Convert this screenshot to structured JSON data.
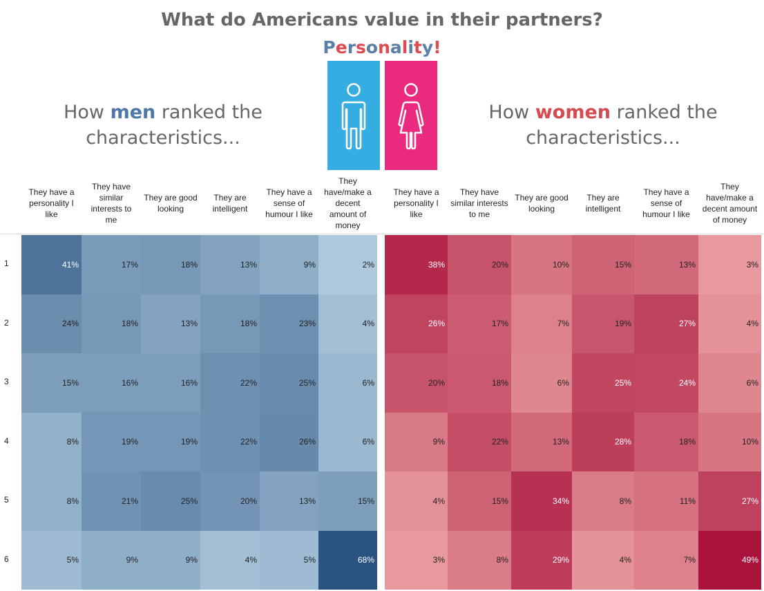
{
  "title": "What do Americans value in their partners?",
  "subtitle_letters": [
    "P",
    "e",
    "r",
    "s",
    "o",
    "n",
    "a",
    "l",
    "i",
    "t",
    "y",
    "!"
  ],
  "men_heading": {
    "pre": "How ",
    "highlight": "men",
    "post": " ranked the",
    "line2": "characteristics..."
  },
  "women_heading": {
    "pre": "How ",
    "highlight": "women",
    "post": " ranked the",
    "line2": "characteristics..."
  },
  "colors": {
    "men_light": "#c9e2f1",
    "men_dark": "#2a5381",
    "women_light": "#fcc5bd",
    "women_dark": "#a9133c",
    "man_icon_bg": "#35ade3",
    "woman_icon_bg": "#ea2a7f",
    "subtitle_blue": "#5b7fa6",
    "subtitle_red": "#e04a52"
  },
  "icons": [
    "man-icon",
    "woman-icon"
  ],
  "chart_data": [
    {
      "type": "heatmap",
      "name": "men",
      "rows": [
        "1",
        "2",
        "3",
        "4",
        "5",
        "6"
      ],
      "columns": [
        "They have a personality I like",
        "They have similar interests to me",
        "They are good looking",
        "They are intelligent",
        "They have a sense of humour I like",
        "They have/make a decent amount of money"
      ],
      "values": [
        [
          41,
          17,
          18,
          13,
          9,
          2
        ],
        [
          24,
          18,
          13,
          18,
          23,
          4
        ],
        [
          15,
          16,
          16,
          22,
          25,
          6
        ],
        [
          8,
          19,
          19,
          22,
          26,
          6
        ],
        [
          8,
          21,
          25,
          20,
          13,
          15
        ],
        [
          5,
          9,
          9,
          4,
          5,
          68
        ]
      ],
      "unit": "%"
    },
    {
      "type": "heatmap",
      "name": "women",
      "rows": [
        "1",
        "2",
        "3",
        "4",
        "5",
        "6"
      ],
      "columns": [
        "They have a personality I like",
        "They have similar interests to me",
        "They are good looking",
        "They are intelligent",
        "They have a sense of humour I like",
        "They have/make a decent amount of money"
      ],
      "values": [
        [
          38,
          20,
          10,
          15,
          13,
          3
        ],
        [
          26,
          17,
          7,
          19,
          27,
          4
        ],
        [
          20,
          18,
          6,
          25,
          24,
          6
        ],
        [
          9,
          22,
          13,
          28,
          18,
          10
        ],
        [
          4,
          15,
          34,
          8,
          11,
          27
        ],
        [
          3,
          8,
          29,
          4,
          7,
          49
        ]
      ],
      "unit": "%"
    }
  ]
}
